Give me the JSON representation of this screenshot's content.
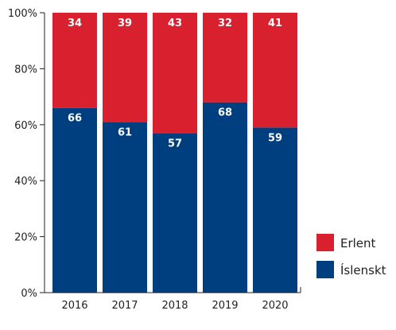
{
  "chart_data": {
    "type": "bar",
    "stacked": true,
    "percent_stacked": true,
    "categories": [
      "2016",
      "2017",
      "2018",
      "2019",
      "2020"
    ],
    "series": [
      {
        "name": "Íslenskt",
        "values": [
          66,
          61,
          57,
          68,
          59
        ],
        "color": "#003f7f"
      },
      {
        "name": "Erlent",
        "values": [
          34,
          39,
          43,
          32,
          41
        ],
        "color": "#d9202f"
      }
    ],
    "ylim": [
      0,
      100
    ],
    "yticks": [
      0,
      20,
      40,
      60,
      80,
      100
    ],
    "ytick_suffix": "%",
    "grid": false,
    "legend_position": "right",
    "legend_order": [
      "Erlent",
      "Íslenskt"
    ]
  }
}
